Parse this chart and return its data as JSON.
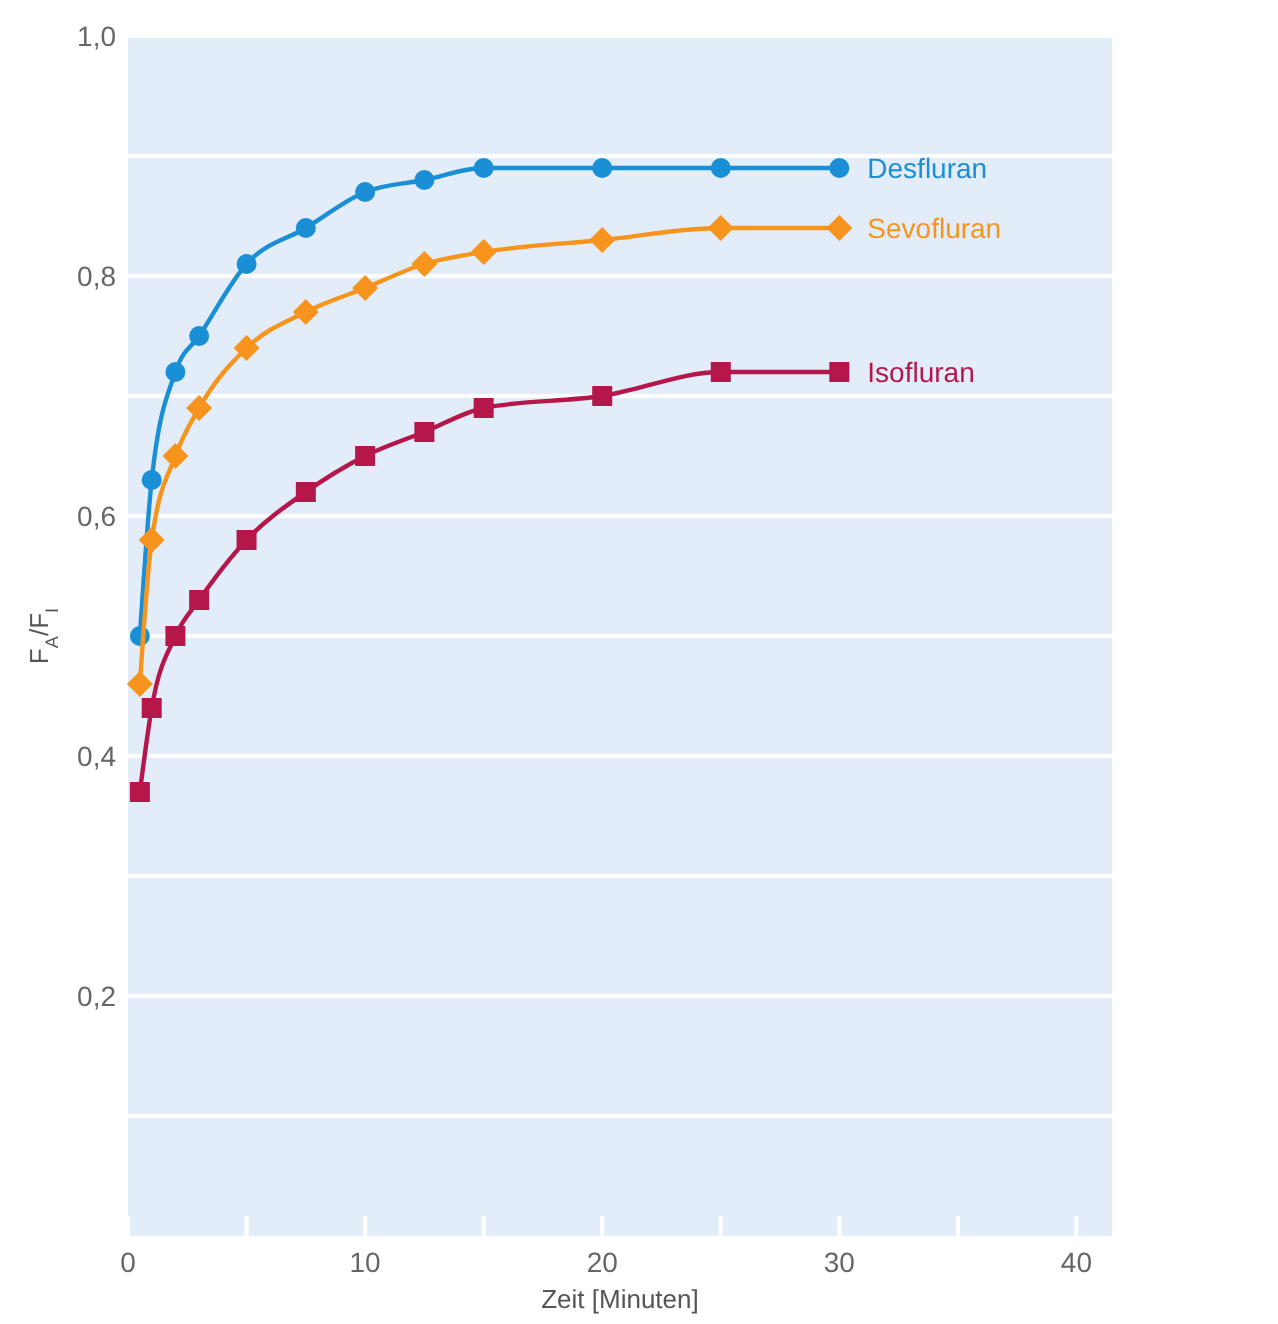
{
  "chart_data": {
    "type": "line",
    "xlabel": "Zeit [Minuten]",
    "ylabel": "F$_{A}$/F$_{I}$",
    "xlim": [
      0,
      41.5
    ],
    "xticks": [
      0,
      {
        "value": 5,
        "label": null
      },
      10,
      {
        "value": 15,
        "label": null
      },
      20,
      {
        "value": 25,
        "label": null
      },
      30,
      {
        "value": 35,
        "label": null
      },
      40
    ],
    "ylim": [
      0,
      1
    ],
    "yticks": [
      {
        "value": 0.1,
        "label": null
      },
      {
        "value": 0.2,
        "label": "0,2"
      },
      {
        "value": 0.3,
        "label": null
      },
      {
        "value": 0.4,
        "label": "0,4"
      },
      {
        "value": 0.5,
        "label": null
      },
      {
        "value": 0.6,
        "label": "0,6"
      },
      {
        "value": 0.7,
        "label": null
      },
      {
        "value": 0.8,
        "label": "0,8"
      },
      {
        "value": 0.9,
        "label": null
      },
      {
        "value": 1,
        "label": "1,0"
      }
    ],
    "grid": "y",
    "line_style": "solid",
    "x": [
      0.5,
      1,
      2,
      3,
      5,
      7.5,
      10,
      12.5,
      15,
      20,
      25,
      30
    ],
    "series": [
      {
        "name": "Desfluran",
        "color": "#1a8fd6",
        "marker": "circle",
        "values": [
          0.5,
          0.63,
          0.72,
          0.75,
          0.81,
          0.84,
          0.87,
          0.88,
          0.89,
          0.89,
          0.89,
          0.89
        ]
      },
      {
        "name": "Sevofluran",
        "color": "#f7941d",
        "marker": "diamond",
        "values": [
          0.46,
          0.58,
          0.65,
          0.69,
          0.74,
          0.77,
          0.79,
          0.81,
          0.82,
          0.83,
          0.84,
          0.84
        ]
      },
      {
        "name": "Isofluran",
        "color": "#b5174b",
        "marker": "square",
        "values": [
          0.37,
          0.44,
          0.5,
          0.53,
          0.58,
          0.62,
          0.65,
          0.67,
          0.69,
          0.7,
          0.72,
          0.72
        ]
      }
    ]
  }
}
